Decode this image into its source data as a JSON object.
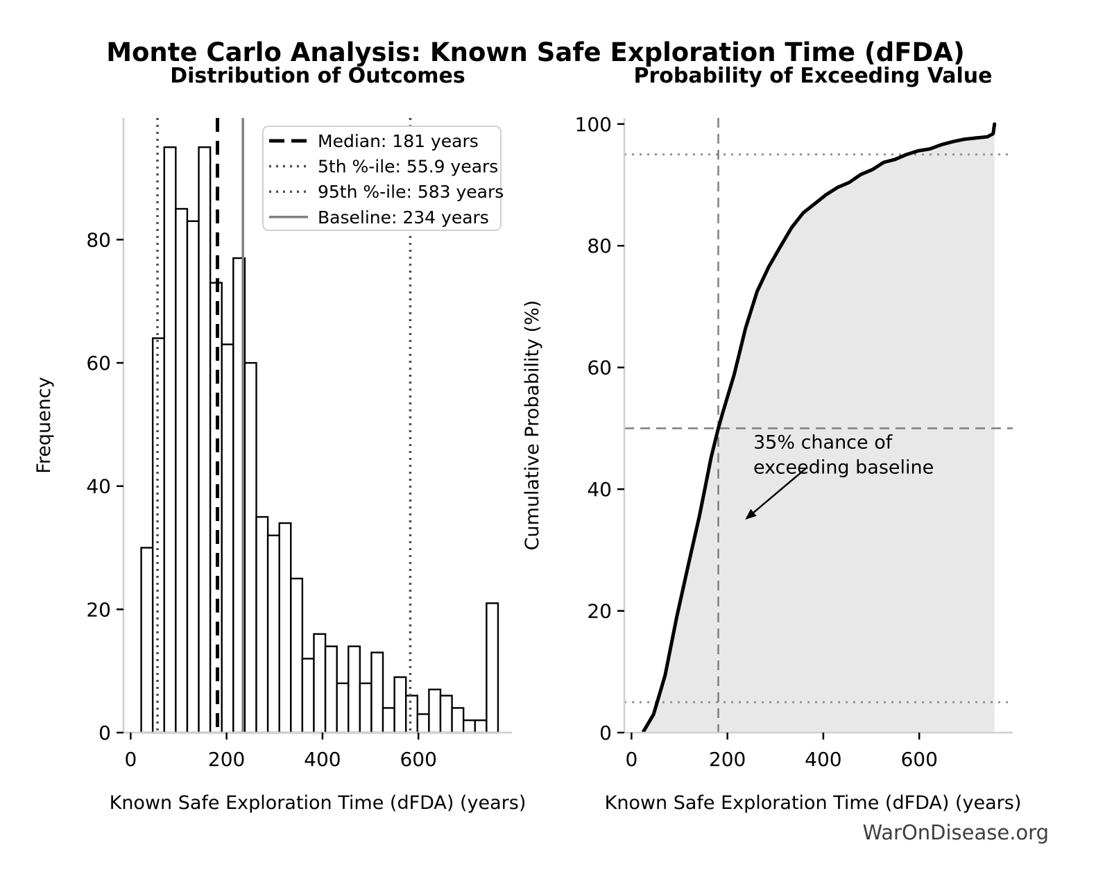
{
  "figure_title": "Monte Carlo Analysis: Known Safe Exploration Time (dFDA)",
  "footer": "WarOnDisease.org",
  "chart_data": [
    {
      "type": "bar",
      "title": "Distribution of Outcomes",
      "xlabel": "Known Safe Exploration Time (dFDA) (years)",
      "ylabel": "Frequency",
      "xlim": [
        -15,
        795
      ],
      "ylim": [
        0,
        99.75
      ],
      "xticks": [
        0,
        200,
        400,
        600
      ],
      "yticks": [
        0,
        20,
        40,
        60,
        80
      ],
      "bins": {
        "start": 22,
        "width": 24
      },
      "counts": [
        30,
        64,
        95,
        85,
        83,
        95,
        73,
        63,
        77,
        60,
        35,
        32,
        34,
        25,
        12,
        16,
        14,
        8,
        14,
        8,
        13,
        4,
        9,
        6,
        3,
        7,
        6,
        4,
        2,
        2,
        21
      ],
      "total_samples": 1000,
      "bar_fill": "#ffffff",
      "bar_edge": "#000000",
      "legend": [
        {
          "label": "Median: 181 years",
          "value": 181,
          "style": "dashed",
          "color": "#000000"
        },
        {
          "label": "5th %-ile: 55.9 years",
          "value": 55.9,
          "style": "dotted",
          "color": "#4f4f4f"
        },
        {
          "label": "95th %-ile: 583 years",
          "value": 583,
          "style": "dotted",
          "color": "#4f4f4f"
        },
        {
          "label": "Baseline: 234 years",
          "value": 234,
          "style": "solid",
          "color": "#808080"
        }
      ]
    },
    {
      "type": "area",
      "title": "Probability of Exceeding Value",
      "xlabel": "Known Safe Exploration Time (dFDA) (years)",
      "ylabel": "Cumulative Probability (%)",
      "xlim": [
        -15,
        795
      ],
      "ylim": [
        0,
        101
      ],
      "xticks": [
        0,
        200,
        400,
        600
      ],
      "yticks": [
        0,
        20,
        40,
        60,
        80,
        100
      ],
      "curve_color": "#000000",
      "fill_color": "#e8e8e8",
      "cdf_points": [
        [
          25,
          0.2
        ],
        [
          46,
          3.0
        ],
        [
          70,
          9.4
        ],
        [
          94,
          18.9
        ],
        [
          118,
          27.4
        ],
        [
          142,
          35.7
        ],
        [
          166,
          45.2
        ],
        [
          181,
          50.0
        ],
        [
          190,
          52.5
        ],
        [
          214,
          58.8
        ],
        [
          234,
          65.2
        ],
        [
          238,
          66.5
        ],
        [
          262,
          72.5
        ],
        [
          286,
          76.5
        ],
        [
          310,
          79.8
        ],
        [
          334,
          83.0
        ],
        [
          358,
          85.4
        ],
        [
          382,
          86.9
        ],
        [
          406,
          88.4
        ],
        [
          430,
          89.6
        ],
        [
          454,
          90.4
        ],
        [
          478,
          91.7
        ],
        [
          502,
          92.5
        ],
        [
          526,
          93.7
        ],
        [
          550,
          94.2
        ],
        [
          574,
          95.0
        ],
        [
          598,
          95.6
        ],
        [
          622,
          95.9
        ],
        [
          646,
          96.6
        ],
        [
          670,
          97.1
        ],
        [
          694,
          97.5
        ],
        [
          718,
          97.7
        ],
        [
          742,
          97.9
        ],
        [
          754,
          98.4
        ],
        [
          757,
          100
        ]
      ],
      "guides": [
        {
          "orient": "h",
          "value": 50,
          "style": "dashed",
          "color": "#7f7f7f"
        },
        {
          "orient": "h",
          "value": 95,
          "style": "dotted",
          "color": "#8c8c8c"
        },
        {
          "orient": "h",
          "value": 5,
          "style": "dotted",
          "color": "#8c8c8c"
        },
        {
          "orient": "v",
          "value": 181,
          "style": "dashed",
          "color": "#7f7f7f"
        }
      ],
      "annotation": {
        "line1": "35% chance of",
        "line2": "exceeding baseline",
        "text_x": 254,
        "y_line1": 46.7,
        "y_line2": 42.6,
        "arrow_from": [
          365,
          43.5
        ],
        "arrow_to": [
          237,
          35
        ]
      }
    }
  ]
}
